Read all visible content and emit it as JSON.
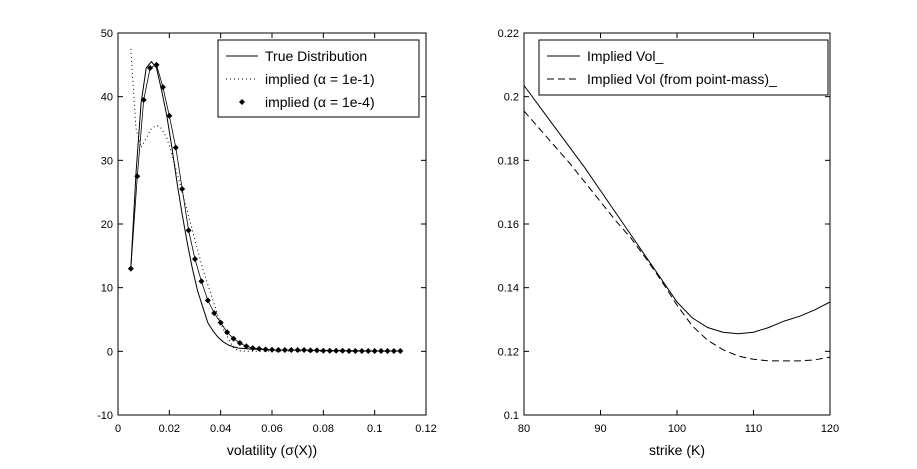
{
  "chart_data": [
    {
      "type": "line",
      "title": "",
      "xlabel": "volatility (σ(X))",
      "ylabel": "",
      "xlim": [
        0,
        0.12
      ],
      "ylim": [
        -10,
        50
      ],
      "xticks": [
        0,
        0.02,
        0.04,
        0.06,
        0.08,
        0.1,
        0.12
      ],
      "xtick_labels": [
        "0",
        "0.02",
        "0.04",
        "0.06",
        "0.08",
        "0.1",
        "0.12"
      ],
      "yticks": [
        -10,
        0,
        10,
        20,
        30,
        40,
        50
      ],
      "ytick_labels": [
        "-10",
        "0",
        "10",
        "20",
        "30",
        "40",
        "50"
      ],
      "grid": false,
      "legend_position": "top-right",
      "series": [
        {
          "name": "True Distribution",
          "style": "solid",
          "color": "#000000",
          "x": [
            0.005,
            0.007,
            0.009,
            0.011,
            0.013,
            0.015,
            0.017,
            0.019,
            0.021,
            0.023,
            0.025,
            0.027,
            0.029,
            0.031,
            0.033,
            0.035,
            0.037,
            0.039,
            0.041,
            0.043,
            0.045,
            0.047,
            0.05,
            0.055,
            0.06,
            0.07,
            0.08,
            0.09,
            0.1,
            0.11
          ],
          "y": [
            13,
            28,
            39,
            44.5,
            45.5,
            44.5,
            41,
            37,
            32,
            26.5,
            21.5,
            17,
            13,
            9.5,
            7,
            4.5,
            3.2,
            2.2,
            1.5,
            1,
            0.7,
            0.5,
            0.4,
            0.3,
            0.2,
            0.2,
            0.15,
            0.1,
            0.05,
            0.05
          ]
        },
        {
          "name": "implied (α = 1e-1)",
          "style": "dotted",
          "color": "#000000",
          "x": [
            0.005,
            0.007,
            0.009,
            0.011,
            0.013,
            0.015,
            0.017,
            0.019,
            0.021,
            0.023,
            0.025,
            0.027,
            0.029,
            0.031,
            0.033,
            0.035,
            0.037,
            0.039,
            0.041,
            0.043,
            0.045,
            0.047,
            0.05,
            0.055,
            0.06,
            0.07,
            0.08,
            0.09,
            0.1,
            0.11
          ],
          "y": [
            47.5,
            35,
            32,
            33.5,
            35,
            35.5,
            35,
            33.5,
            31,
            28,
            25,
            22,
            19,
            16,
            13,
            10.5,
            8,
            5.5,
            3.5,
            2,
            0.5,
            0.1,
            0,
            0,
            0,
            0,
            0,
            0,
            0,
            0
          ]
        },
        {
          "name": "implied (α = 1e-4)",
          "style": "markers",
          "color": "#000000",
          "x": [
            0.005,
            0.0075,
            0.01,
            0.0125,
            0.015,
            0.0175,
            0.02,
            0.0225,
            0.025,
            0.0275,
            0.03,
            0.0325,
            0.035,
            0.0375,
            0.04,
            0.0425,
            0.045,
            0.0475,
            0.05,
            0.0525,
            0.055,
            0.0575,
            0.06,
            0.0625,
            0.065,
            0.0675,
            0.07,
            0.0725,
            0.075,
            0.0775,
            0.08,
            0.0825,
            0.085,
            0.0875,
            0.09,
            0.0925,
            0.095,
            0.0975,
            0.1,
            0.1025,
            0.105,
            0.1075,
            0.11
          ],
          "y": [
            13,
            27.5,
            39.5,
            44.5,
            45,
            41.5,
            37,
            32,
            25.5,
            19,
            14.5,
            11,
            8,
            6,
            4.5,
            3,
            2,
            1.3,
            0.8,
            0.5,
            0.4,
            0.3,
            0.25,
            0.2,
            0.2,
            0.2,
            0.2,
            0.2,
            0.15,
            0.15,
            0.1,
            0.1,
            0.1,
            0.1,
            0.05,
            0.05,
            0.05,
            0.05,
            0.05,
            0.05,
            0.05,
            0.05,
            0.05
          ]
        }
      ]
    },
    {
      "type": "line",
      "title": "",
      "xlabel": "strike (K)",
      "ylabel": "",
      "xlim": [
        80,
        120
      ],
      "ylim": [
        0.1,
        0.22
      ],
      "xticks": [
        80,
        90,
        100,
        110,
        120
      ],
      "xtick_labels": [
        "80",
        "90",
        "100",
        "110",
        "120"
      ],
      "yticks": [
        0.1,
        0.12,
        0.14,
        0.16,
        0.18,
        0.2,
        0.22
      ],
      "ytick_labels": [
        "0.1",
        "0.12",
        "0.14",
        "0.16",
        "0.18",
        "0.2",
        "0.22"
      ],
      "grid": false,
      "legend_position": "top",
      "series": [
        {
          "name": "Implied Vol_",
          "style": "solid",
          "color": "#000000",
          "x": [
            80,
            82,
            84,
            86,
            88,
            90,
            92,
            94,
            96,
            98,
            100,
            102,
            104,
            106,
            108,
            110,
            112,
            114,
            116,
            118,
            120
          ],
          "y": [
            0.2035,
            0.197,
            0.1905,
            0.184,
            0.1775,
            0.1705,
            0.1635,
            0.1565,
            0.1495,
            0.1425,
            0.1355,
            0.1305,
            0.1275,
            0.126,
            0.1255,
            0.126,
            0.1275,
            0.1295,
            0.131,
            0.133,
            0.1355
          ]
        },
        {
          "name": "Implied Vol (from point-mass)_",
          "style": "dashed",
          "color": "#000000",
          "x": [
            80,
            82,
            84,
            86,
            88,
            90,
            92,
            94,
            96,
            98,
            100,
            102,
            104,
            106,
            108,
            110,
            112,
            114,
            116,
            118,
            120
          ],
          "y": [
            0.1955,
            0.19,
            0.1845,
            0.179,
            0.173,
            0.167,
            0.161,
            0.1555,
            0.149,
            0.142,
            0.1345,
            0.128,
            0.1235,
            0.1205,
            0.1185,
            0.1175,
            0.117,
            0.117,
            0.117,
            0.1173,
            0.1182
          ]
        }
      ]
    }
  ]
}
